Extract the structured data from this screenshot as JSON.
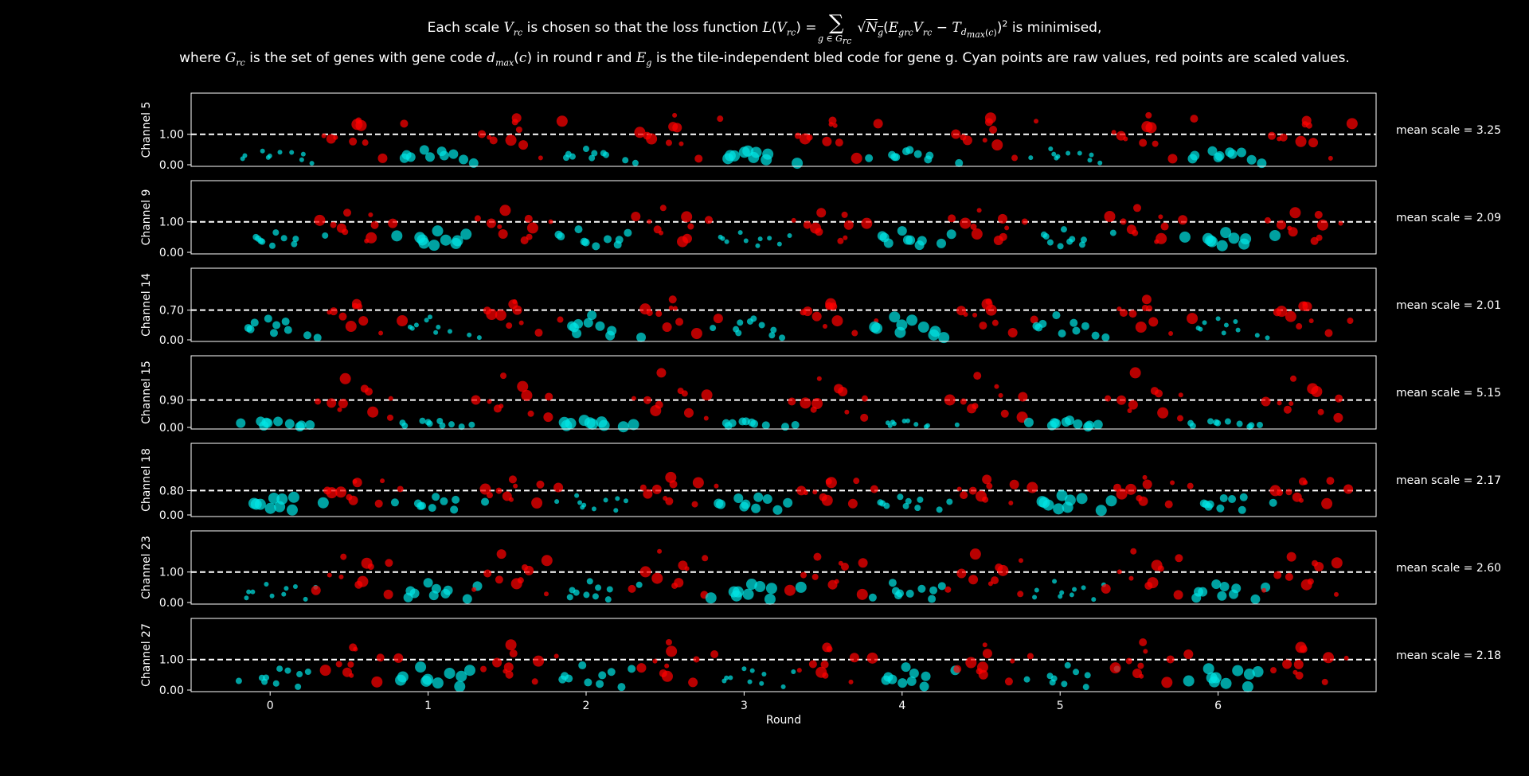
{
  "title": {
    "line1_prefix": "Each scale",
    "line1_mid": "is chosen so that the loss function",
    "line1_suffix": "is minimised,",
    "line2_prefix": "where",
    "line2_a": "is the set of genes with gene code",
    "line2_b": "in round r and",
    "line2_c": "is the tile-independent bled code for gene g. Cyan points are raw values, red points are scaled values."
  },
  "chart_data": {
    "type": "scatter",
    "xlabel": "Round",
    "x_ticks": [
      0,
      1,
      2,
      3,
      4,
      5,
      6
    ],
    "xlim": [
      -0.5,
      7.0
    ],
    "raw_color": "#00e5e5",
    "scaled_color": "#ff0000",
    "reference_line": "dashed white at y = 1 / mean scale (raw units)",
    "panels": [
      {
        "channel": "Channel 5",
        "ylabel": "Channel 5",
        "yticks": [
          "0.00",
          "1.00"
        ],
        "ref_y": 1.0,
        "ylim": [
          0,
          2.3
        ],
        "mean_scale_label": "mean scale = 3.25",
        "raw": [
          [
            0.0,
            0.3
          ],
          [
            0.1,
            0.22
          ],
          [
            0.2,
            0.35
          ],
          [
            0.1,
            0.45
          ],
          [
            0.3,
            0.15
          ],
          [
            0.05,
            0.25
          ],
          [
            0.4,
            0.05
          ],
          [
            0.15,
            0.38
          ],
          [
            0.25,
            0.3
          ],
          [
            -0.05,
            0.2
          ]
        ],
        "scaled": [
          [
            0.0,
            0.95
          ],
          [
            0.1,
            0.72
          ],
          [
            0.2,
            1.15
          ],
          [
            0.1,
            1.45
          ],
          [
            0.3,
            0.2
          ],
          [
            0.05,
            0.8
          ],
          [
            0.4,
            1.35
          ],
          [
            0.15,
            1.25
          ],
          [
            0.25,
            0.65
          ],
          [
            -0.05,
            0.85
          ]
        ]
      },
      {
        "channel": "Channel 9",
        "ylabel": "Channel 9",
        "yticks": [
          "0.00",
          "1.00"
        ],
        "ref_y": 1.0,
        "ylim": [
          0,
          2.3
        ],
        "mean_scale_label": "mean scale = 2.09",
        "raw": [
          [
            0.0,
            0.45
          ],
          [
            0.1,
            0.35
          ],
          [
            0.2,
            0.4
          ],
          [
            0.1,
            0.65
          ],
          [
            0.3,
            0.25
          ],
          [
            0.05,
            0.3
          ],
          [
            0.4,
            0.55
          ],
          [
            0.15,
            0.2
          ],
          [
            0.25,
            0.38
          ],
          [
            -0.05,
            0.5
          ]
        ],
        "scaled": [
          [
            0.0,
            0.9
          ],
          [
            0.1,
            0.75
          ],
          [
            0.2,
            1.1
          ],
          [
            0.1,
            1.3
          ],
          [
            0.3,
            0.45
          ],
          [
            0.05,
            0.6
          ],
          [
            0.4,
            0.95
          ],
          [
            0.15,
            0.35
          ],
          [
            0.25,
            0.8
          ],
          [
            -0.05,
            1.05
          ]
        ]
      },
      {
        "channel": "Channel 14",
        "ylabel": "Channel 14",
        "yticks": [
          "0.00",
          "0.70"
        ],
        "ref_y": 0.7,
        "ylim": [
          0,
          1.65
        ],
        "mean_scale_label": "mean scale = 2.01",
        "raw": [
          [
            0.0,
            0.25
          ],
          [
            0.1,
            0.15
          ],
          [
            0.2,
            0.3
          ],
          [
            0.1,
            0.5
          ],
          [
            0.3,
            0.1
          ],
          [
            0.05,
            0.35
          ],
          [
            0.4,
            0.05
          ],
          [
            0.15,
            0.4
          ],
          [
            0.25,
            0.2
          ],
          [
            -0.05,
            0.28
          ]
        ],
        "scaled": [
          [
            0.0,
            0.55
          ],
          [
            0.1,
            0.3
          ],
          [
            0.2,
            0.7
          ],
          [
            0.1,
            0.85
          ],
          [
            0.3,
            0.15
          ],
          [
            0.05,
            0.6
          ],
          [
            0.4,
            0.45
          ],
          [
            0.15,
            0.75
          ],
          [
            0.25,
            0.4
          ],
          [
            -0.05,
            0.65
          ]
        ]
      },
      {
        "channel": "Channel 15",
        "ylabel": "Channel 15",
        "yticks": [
          "0.00",
          "0.90"
        ],
        "ref_y": 0.9,
        "ylim": [
          0,
          2.3
        ],
        "mean_scale_label": "mean scale = 5.15",
        "raw": [
          [
            0.0,
            0.05
          ],
          [
            0.1,
            0.15
          ],
          [
            0.2,
            0.1
          ],
          [
            0.1,
            0.2
          ],
          [
            0.3,
            0.02
          ],
          [
            0.05,
            0.12
          ],
          [
            0.4,
            0.08
          ],
          [
            0.15,
            0.18
          ],
          [
            0.25,
            0.06
          ],
          [
            -0.05,
            0.14
          ]
        ],
        "scaled": [
          [
            0.0,
            0.8
          ],
          [
            0.1,
            0.55
          ],
          [
            0.2,
            1.05
          ],
          [
            0.1,
            1.6
          ],
          [
            0.3,
            0.3
          ],
          [
            0.05,
            0.7
          ],
          [
            0.4,
            0.95
          ],
          [
            0.15,
            1.2
          ],
          [
            0.25,
            0.45
          ],
          [
            -0.05,
            0.85
          ]
        ]
      },
      {
        "channel": "Channel 18",
        "ylabel": "Channel 18",
        "yticks": [
          "0.00",
          "0.80"
        ],
        "ref_y": 0.8,
        "ylim": [
          0,
          2.3
        ],
        "mean_scale_label": "mean scale = 2.17",
        "raw": [
          [
            0.0,
            0.35
          ],
          [
            0.1,
            0.25
          ],
          [
            0.2,
            0.45
          ],
          [
            0.1,
            0.55
          ],
          [
            0.3,
            0.15
          ],
          [
            0.05,
            0.3
          ],
          [
            0.4,
            0.4
          ],
          [
            0.15,
            0.2
          ],
          [
            0.25,
            0.5
          ],
          [
            -0.05,
            0.38
          ]
        ],
        "scaled": [
          [
            0.0,
            0.75
          ],
          [
            0.1,
            0.55
          ],
          [
            0.2,
            0.95
          ],
          [
            0.1,
            1.1
          ],
          [
            0.3,
            0.35
          ],
          [
            0.05,
            0.65
          ],
          [
            0.4,
            0.85
          ],
          [
            0.15,
            0.45
          ],
          [
            0.25,
            1.0
          ],
          [
            -0.05,
            0.8
          ]
        ]
      },
      {
        "channel": "Channel 23",
        "ylabel": "Channel 23",
        "yticks": [
          "0.00",
          "1.00"
        ],
        "ref_y": 1.0,
        "ylim": [
          0,
          2.3
        ],
        "mean_scale_label": "mean scale = 2.60",
        "raw": [
          [
            0.0,
            0.35
          ],
          [
            0.1,
            0.2
          ],
          [
            0.2,
            0.45
          ],
          [
            0.1,
            0.6
          ],
          [
            0.3,
            0.1
          ],
          [
            0.05,
            0.3
          ],
          [
            0.4,
            0.5
          ],
          [
            0.15,
            0.25
          ],
          [
            0.25,
            0.4
          ],
          [
            -0.05,
            0.15
          ]
        ],
        "scaled": [
          [
            0.0,
            0.9
          ],
          [
            0.1,
            0.55
          ],
          [
            0.2,
            1.15
          ],
          [
            0.1,
            1.5
          ],
          [
            0.3,
            0.25
          ],
          [
            0.05,
            0.75
          ],
          [
            0.4,
            1.3
          ],
          [
            0.15,
            0.65
          ],
          [
            0.25,
            1.05
          ],
          [
            -0.05,
            0.4
          ]
        ]
      },
      {
        "channel": "Channel 27",
        "ylabel": "Channel 27",
        "yticks": [
          "0.00",
          "1.00"
        ],
        "ref_y": 1.0,
        "ylim": [
          0,
          2.3
        ],
        "mean_scale_label": "mean scale = 2.18",
        "raw": [
          [
            0.0,
            0.4
          ],
          [
            0.1,
            0.25
          ],
          [
            0.2,
            0.55
          ],
          [
            0.1,
            0.7
          ],
          [
            0.3,
            0.1
          ],
          [
            0.05,
            0.35
          ],
          [
            0.4,
            0.6
          ],
          [
            0.15,
            0.2
          ],
          [
            0.25,
            0.45
          ],
          [
            -0.05,
            0.3
          ]
        ],
        "scaled": [
          [
            0.0,
            0.85
          ],
          [
            0.1,
            0.55
          ],
          [
            0.2,
            1.2
          ],
          [
            0.1,
            1.4
          ],
          [
            0.3,
            0.25
          ],
          [
            0.05,
            0.75
          ],
          [
            0.4,
            1.05
          ],
          [
            0.15,
            0.45
          ],
          [
            0.25,
            0.95
          ],
          [
            -0.05,
            0.65
          ]
        ]
      }
    ]
  }
}
